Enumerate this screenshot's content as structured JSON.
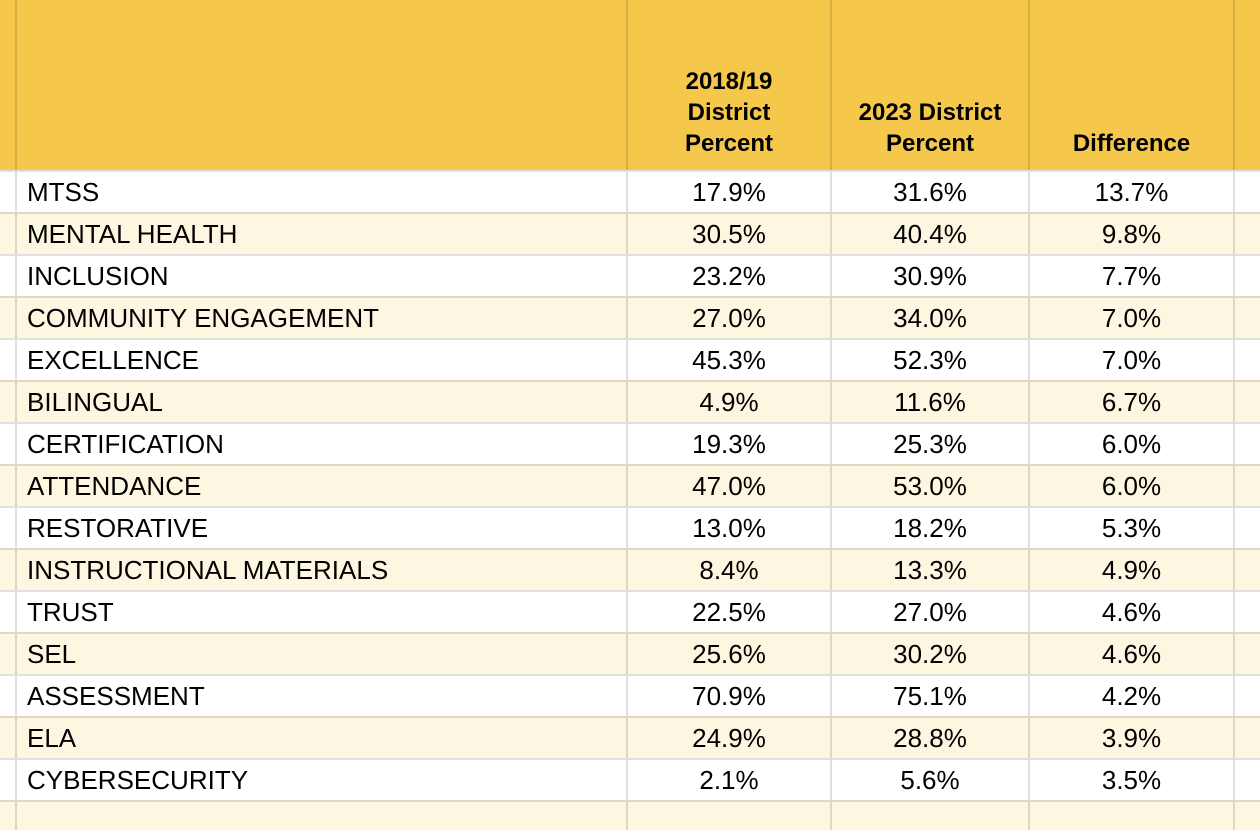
{
  "colors": {
    "header_bg": "#F5C84B",
    "header_gridline_on_gold": "#D8B042",
    "row_bg": "#FFFFFF",
    "row_alt_bg": "#FDF6E0",
    "gridline": "rgba(0,0,0,0.12)",
    "text": "#000000"
  },
  "table": {
    "header": {
      "topic": "",
      "p2018": "2018/19\nDistrict\nPercent",
      "p2023": "2023 District\nPercent",
      "diff": "Difference"
    },
    "rows": [
      {
        "label": "MTSS",
        "p2018": "17.9%",
        "p2023": "31.6%",
        "diff": "13.7%"
      },
      {
        "label": "MENTAL HEALTH",
        "p2018": "30.5%",
        "p2023": "40.4%",
        "diff": "9.8%"
      },
      {
        "label": "INCLUSION",
        "p2018": "23.2%",
        "p2023": "30.9%",
        "diff": "7.7%"
      },
      {
        "label": "COMMUNITY ENGAGEMENT",
        "p2018": "27.0%",
        "p2023": "34.0%",
        "diff": "7.0%"
      },
      {
        "label": "EXCELLENCE",
        "p2018": "45.3%",
        "p2023": "52.3%",
        "diff": "7.0%"
      },
      {
        "label": "BILINGUAL",
        "p2018": "4.9%",
        "p2023": "11.6%",
        "diff": "6.7%"
      },
      {
        "label": "CERTIFICATION",
        "p2018": "19.3%",
        "p2023": "25.3%",
        "diff": "6.0%"
      },
      {
        "label": "ATTENDANCE",
        "p2018": "47.0%",
        "p2023": "53.0%",
        "diff": "6.0%"
      },
      {
        "label": "RESTORATIVE",
        "p2018": "13.0%",
        "p2023": "18.2%",
        "diff": "5.3%"
      },
      {
        "label": "INSTRUCTIONAL MATERIALS",
        "p2018": "8.4%",
        "p2023": "13.3%",
        "diff": "4.9%"
      },
      {
        "label": "TRUST",
        "p2018": "22.5%",
        "p2023": "27.0%",
        "diff": "4.6%"
      },
      {
        "label": "SEL",
        "p2018": "25.6%",
        "p2023": "30.2%",
        "diff": "4.6%"
      },
      {
        "label": "ASSESSMENT",
        "p2018": "70.9%",
        "p2023": "75.1%",
        "diff": "4.2%"
      },
      {
        "label": "ELA",
        "p2018": "24.9%",
        "p2023": "28.8%",
        "diff": "3.9%"
      },
      {
        "label": "CYBERSECURITY",
        "p2018": "2.1%",
        "p2023": "5.6%",
        "diff": "3.5%"
      }
    ]
  },
  "chart_data": {
    "type": "table",
    "columns": [
      "",
      "2018/19 District Percent",
      "2023 District Percent",
      "Difference"
    ],
    "values_unit": "percent",
    "rows": [
      [
        "MTSS",
        17.9,
        31.6,
        13.7
      ],
      [
        "MENTAL HEALTH",
        30.5,
        40.4,
        9.8
      ],
      [
        "INCLUSION",
        23.2,
        30.9,
        7.7
      ],
      [
        "COMMUNITY ENGAGEMENT",
        27.0,
        34.0,
        7.0
      ],
      [
        "EXCELLENCE",
        45.3,
        52.3,
        7.0
      ],
      [
        "BILINGUAL",
        4.9,
        11.6,
        6.7
      ],
      [
        "CERTIFICATION",
        19.3,
        25.3,
        6.0
      ],
      [
        "ATTENDANCE",
        47.0,
        53.0,
        6.0
      ],
      [
        "RESTORATIVE",
        13.0,
        18.2,
        5.3
      ],
      [
        "INSTRUCTIONAL MATERIALS",
        8.4,
        13.3,
        4.9
      ],
      [
        "TRUST",
        22.5,
        27.0,
        4.6
      ],
      [
        "SEL",
        25.6,
        30.2,
        4.6
      ],
      [
        "ASSESSMENT",
        70.9,
        75.1,
        4.2
      ],
      [
        "ELA",
        24.9,
        28.8,
        3.9
      ],
      [
        "CYBERSECURITY",
        2.1,
        5.6,
        3.5
      ]
    ],
    "layout": {
      "header_fill": "#F5C84B",
      "banding": [
        "#FFFFFF",
        "#FDF6E0"
      ],
      "grid": true,
      "sorted_by": "Difference descending"
    }
  }
}
